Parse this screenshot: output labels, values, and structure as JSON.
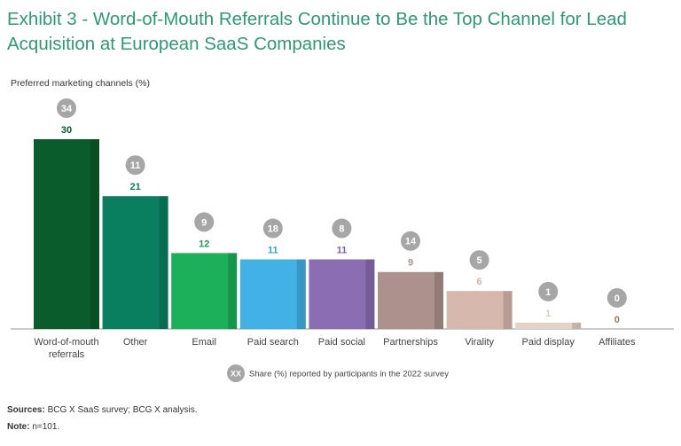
{
  "chart_data": {
    "type": "bar",
    "title": "Exhibit 3 - Word-of-Mouth Referrals Continue to Be the Top Channel for Lead Acquisition at European SaaS Companies",
    "y_label": "Preferred marketing channels (%)",
    "categories": [
      "Word-of-mouth referrals",
      "Other",
      "Email",
      "Paid search",
      "Paid social",
      "Partnerships",
      "Virality",
      "Paid display",
      "Affiliates"
    ],
    "values": [
      30,
      21,
      12,
      11,
      11,
      9,
      6,
      1,
      0
    ],
    "colors": [
      "#0b5c2c",
      "#0a7f5f",
      "#1db05a",
      "#41b1e6",
      "#8a6db3",
      "#ad918c",
      "#d6b8ac",
      "#e3d2c8",
      "#c9b7a6"
    ],
    "label_colors": [
      "#0b5c2c",
      "#0a7f5f",
      "#1a9e50",
      "#2fa0d8",
      "#7d62a8",
      "#b08f8d",
      "#d4b4a6",
      "#dccbb9",
      "#9b7a5e"
    ],
    "survey_2022_values": [
      34,
      11,
      9,
      18,
      8,
      14,
      5,
      1,
      0
    ],
    "ylim": [
      0,
      30
    ],
    "legend": {
      "symbol": "XX",
      "label": "Share (%) reported by participants in the 2022 survey"
    },
    "sources": {
      "label": "Sources:",
      "text": "BCG X SaaS survey; BCG X analysis."
    },
    "note": {
      "label": "Note:",
      "text": "n=101."
    }
  }
}
